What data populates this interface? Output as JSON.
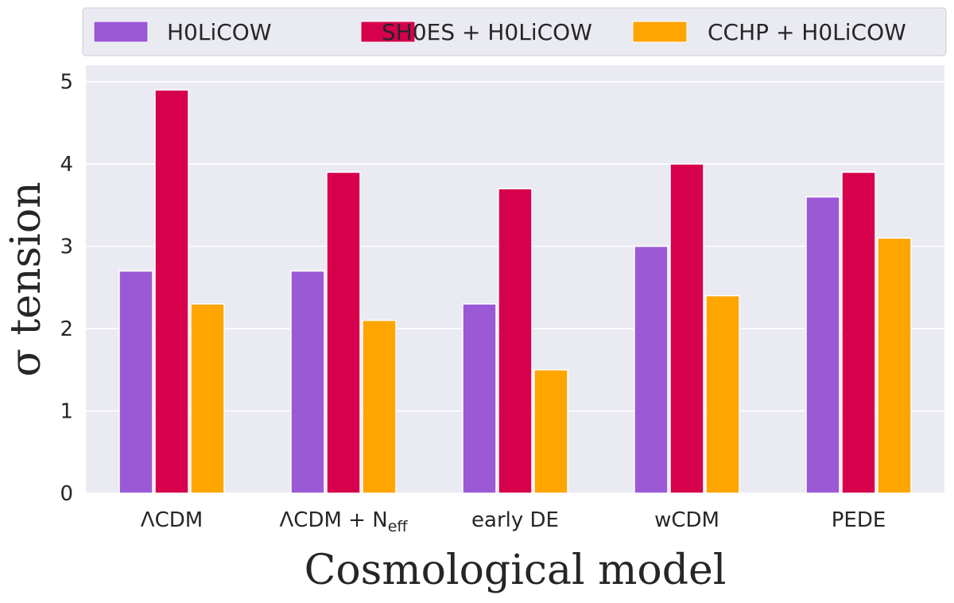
{
  "chart_data": {
    "type": "bar",
    "title": "",
    "xlabel": "Cosmological model",
    "ylabel": "σ tension",
    "categories": [
      {
        "main": "ΛCDM",
        "sub": ""
      },
      {
        "main": "ΛCDM + N",
        "sub": "eff"
      },
      {
        "main": "early DE",
        "sub": ""
      },
      {
        "main": "wCDM",
        "sub": ""
      },
      {
        "main": "PEDE",
        "sub": ""
      }
    ],
    "series": [
      {
        "name": "H0LiCOW",
        "color": "#9b59d6",
        "values": [
          2.7,
          2.7,
          2.3,
          3.0,
          3.6
        ]
      },
      {
        "name": "SH0ES + H0LiCOW",
        "color": "#d6004c",
        "values": [
          4.9,
          3.9,
          3.7,
          4.0,
          3.9
        ]
      },
      {
        "name": "CCHP + H0LiCOW",
        "color": "#ffa500",
        "values": [
          2.3,
          2.1,
          1.5,
          2.4,
          3.1
        ]
      }
    ],
    "ylim": [
      0,
      5.2
    ],
    "yticks": [
      "0",
      "1",
      "2",
      "3",
      "4",
      "5"
    ],
    "grid": true,
    "legend_position": "top",
    "background_color": "#eaeaf2"
  }
}
